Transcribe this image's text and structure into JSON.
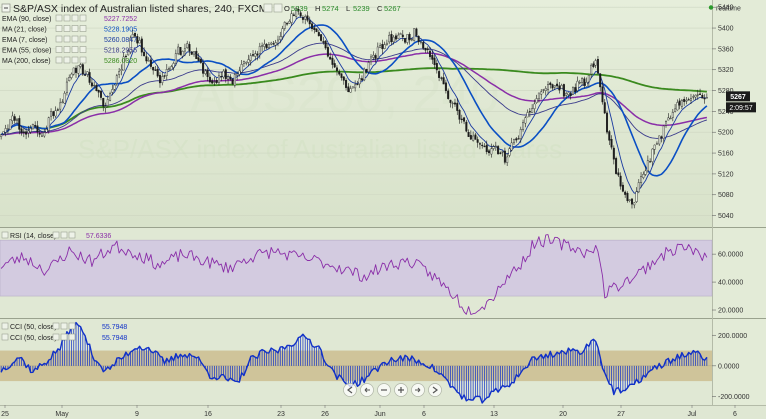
{
  "header": {
    "title": "S&P/ASX index of Australian listed shares, 240, FXCM",
    "ohlc": [
      {
        "k": "O",
        "v": "5239"
      },
      {
        "k": "H",
        "v": "5274"
      },
      {
        "k": "L",
        "v": "5239"
      },
      {
        "k": "C",
        "v": "5267"
      }
    ],
    "realtime_label": "realtime"
  },
  "watermark": {
    "big": "AUS200, 240",
    "sub": "S&P/ASX index of Australian listed shares"
  },
  "price_badges": {
    "last": "5267",
    "countdown": "2:09:57"
  },
  "colors": {
    "background": "#dfe8d2",
    "candle_up": "#eaf0e2",
    "candle_down": "#1c1c1c",
    "ema90": "#8a2ea8",
    "ma21": "#0a4fc4",
    "ema7": "#1a3aa0",
    "ema55": "#3b3b8c",
    "ma200": "#3a8a1e",
    "rsi": "#8a2ea8",
    "cci": "#1030c8",
    "rsi_band": "#d3cbe0",
    "cci_band": "#cfc49a"
  },
  "chart_data": [
    {
      "type": "candlestick",
      "title": "S&P/ASX index of Australian listed shares, 240, FXCM",
      "timeframe": "240",
      "ylim": [
        5020,
        5450
      ],
      "yticks": [
        5040,
        5080,
        5120,
        5160,
        5200,
        5240,
        5280,
        5320,
        5360,
        5400,
        5440
      ],
      "xticks": [
        "25",
        "May",
        "9",
        "16",
        "23",
        "26",
        "Jun",
        "6",
        "13",
        "20",
        "27",
        "Jul",
        "6"
      ],
      "last_price": 5267,
      "legend": [
        {
          "name": "EMA (90, close)",
          "value": "5227.7252",
          "color_key": "ema90"
        },
        {
          "name": "MA (21, close)",
          "value": "5228.1905",
          "color_key": "ma21"
        },
        {
          "name": "EMA (7, close)",
          "value": "5260.0847",
          "color_key": "ema7"
        },
        {
          "name": "EMA (55, close)",
          "value": "5218.2955",
          "color_key": "ema55"
        },
        {
          "name": "MA (200, close)",
          "value": "5286.0320",
          "color_key": "ma200"
        }
      ],
      "path_anchors": [
        [
          0,
          5200
        ],
        [
          6,
          5230
        ],
        [
          10,
          5195
        ],
        [
          14,
          5215
        ],
        [
          18,
          5190
        ],
        [
          22,
          5235
        ],
        [
          26,
          5255
        ],
        [
          30,
          5300
        ],
        [
          34,
          5330
        ],
        [
          38,
          5310
        ],
        [
          42,
          5275
        ],
        [
          46,
          5250
        ],
        [
          50,
          5295
        ],
        [
          54,
          5340
        ],
        [
          58,
          5390
        ],
        [
          62,
          5360
        ],
        [
          66,
          5330
        ],
        [
          70,
          5300
        ],
        [
          74,
          5325
        ],
        [
          78,
          5355
        ],
        [
          82,
          5365
        ],
        [
          86,
          5340
        ],
        [
          90,
          5315
        ],
        [
          94,
          5290
        ],
        [
          98,
          5310
        ],
        [
          102,
          5300
        ],
        [
          106,
          5330
        ],
        [
          110,
          5340
        ],
        [
          114,
          5360
        ],
        [
          118,
          5370
        ],
        [
          122,
          5385
        ],
        [
          126,
          5410
        ],
        [
          130,
          5430
        ],
        [
          134,
          5420
        ],
        [
          138,
          5400
        ],
        [
          142,
          5370
        ],
        [
          146,
          5330
        ],
        [
          150,
          5300
        ],
        [
          154,
          5280
        ],
        [
          158,
          5300
        ],
        [
          162,
          5330
        ],
        [
          166,
          5355
        ],
        [
          170,
          5375
        ],
        [
          174,
          5385
        ],
        [
          178,
          5380
        ],
        [
          182,
          5390
        ],
        [
          186,
          5370
        ],
        [
          190,
          5345
        ],
        [
          194,
          5300
        ],
        [
          198,
          5260
        ],
        [
          202,
          5230
        ],
        [
          206,
          5200
        ],
        [
          210,
          5180
        ],
        [
          214,
          5160
        ],
        [
          218,
          5170
        ],
        [
          222,
          5150
        ],
        [
          226,
          5180
        ],
        [
          230,
          5210
        ],
        [
          234,
          5250
        ],
        [
          238,
          5280
        ],
        [
          242,
          5290
        ],
        [
          246,
          5285
        ],
        [
          250,
          5270
        ],
        [
          254,
          5290
        ],
        [
          258,
          5300
        ],
        [
          262,
          5340
        ],
        [
          266,
          5230
        ],
        [
          270,
          5140
        ],
        [
          274,
          5080
        ],
        [
          278,
          5060
        ],
        [
          282,
          5110
        ],
        [
          286,
          5150
        ],
        [
          290,
          5190
        ],
        [
          294,
          5220
        ],
        [
          298,
          5250
        ],
        [
          302,
          5270
        ],
        [
          306,
          5265
        ],
        [
          310,
          5267
        ]
      ],
      "seed": 11
    },
    {
      "type": "line",
      "title": "RSI (14, close)",
      "value": "57.6336",
      "ylim": [
        15,
        78
      ],
      "yticks": [
        20,
        40,
        60
      ],
      "band": [
        30,
        70
      ],
      "path_anchors": [
        [
          0,
          52
        ],
        [
          10,
          58
        ],
        [
          20,
          48
        ],
        [
          30,
          62
        ],
        [
          40,
          55
        ],
        [
          50,
          66
        ],
        [
          60,
          60
        ],
        [
          70,
          52
        ],
        [
          80,
          60
        ],
        [
          90,
          55
        ],
        [
          100,
          50
        ],
        [
          110,
          58
        ],
        [
          120,
          62
        ],
        [
          130,
          58
        ],
        [
          140,
          55
        ],
        [
          150,
          50
        ],
        [
          160,
          44
        ],
        [
          170,
          52
        ],
        [
          180,
          55
        ],
        [
          190,
          45
        ],
        [
          200,
          30
        ],
        [
          205,
          20
        ],
        [
          210,
          22
        ],
        [
          215,
          26
        ],
        [
          220,
          38
        ],
        [
          230,
          55
        ],
        [
          235,
          68
        ],
        [
          240,
          70
        ],
        [
          250,
          66
        ],
        [
          260,
          60
        ],
        [
          262,
          70
        ],
        [
          266,
          32
        ],
        [
          270,
          36
        ],
        [
          280,
          45
        ],
        [
          290,
          58
        ],
        [
          300,
          66
        ],
        [
          305,
          62
        ],
        [
          310,
          57.6
        ]
      ],
      "seed": 23
    },
    {
      "type": "histogram",
      "title": "CCI (50, close)",
      "value": "55.7948",
      "ylim": [
        -250,
        300
      ],
      "yticks": [
        -200,
        0,
        200
      ],
      "band": [
        -100,
        100
      ],
      "path_anchors": [
        [
          0,
          -30
        ],
        [
          8,
          60
        ],
        [
          14,
          -40
        ],
        [
          20,
          30
        ],
        [
          26,
          120
        ],
        [
          32,
          280
        ],
        [
          36,
          230
        ],
        [
          40,
          80
        ],
        [
          46,
          -40
        ],
        [
          52,
          40
        ],
        [
          60,
          130
        ],
        [
          66,
          110
        ],
        [
          72,
          20
        ],
        [
          80,
          80
        ],
        [
          86,
          60
        ],
        [
          92,
          -60
        ],
        [
          98,
          -80
        ],
        [
          104,
          -120
        ],
        [
          110,
          40
        ],
        [
          116,
          90
        ],
        [
          122,
          100
        ],
        [
          128,
          150
        ],
        [
          134,
          190
        ],
        [
          140,
          120
        ],
        [
          146,
          -40
        ],
        [
          152,
          -120
        ],
        [
          158,
          -110
        ],
        [
          164,
          -40
        ],
        [
          170,
          30
        ],
        [
          176,
          50
        ],
        [
          182,
          40
        ],
        [
          188,
          10
        ],
        [
          194,
          -60
        ],
        [
          200,
          -160
        ],
        [
          206,
          -230
        ],
        [
          212,
          -220
        ],
        [
          218,
          -170
        ],
        [
          224,
          -120
        ],
        [
          228,
          -60
        ],
        [
          234,
          40
        ],
        [
          240,
          70
        ],
        [
          248,
          90
        ],
        [
          256,
          100
        ],
        [
          262,
          180
        ],
        [
          266,
          -50
        ],
        [
          270,
          -170
        ],
        [
          276,
          -160
        ],
        [
          282,
          -80
        ],
        [
          288,
          -20
        ],
        [
          294,
          30
        ],
        [
          300,
          70
        ],
        [
          306,
          80
        ],
        [
          310,
          55.8
        ]
      ],
      "seed": 37
    }
  ]
}
